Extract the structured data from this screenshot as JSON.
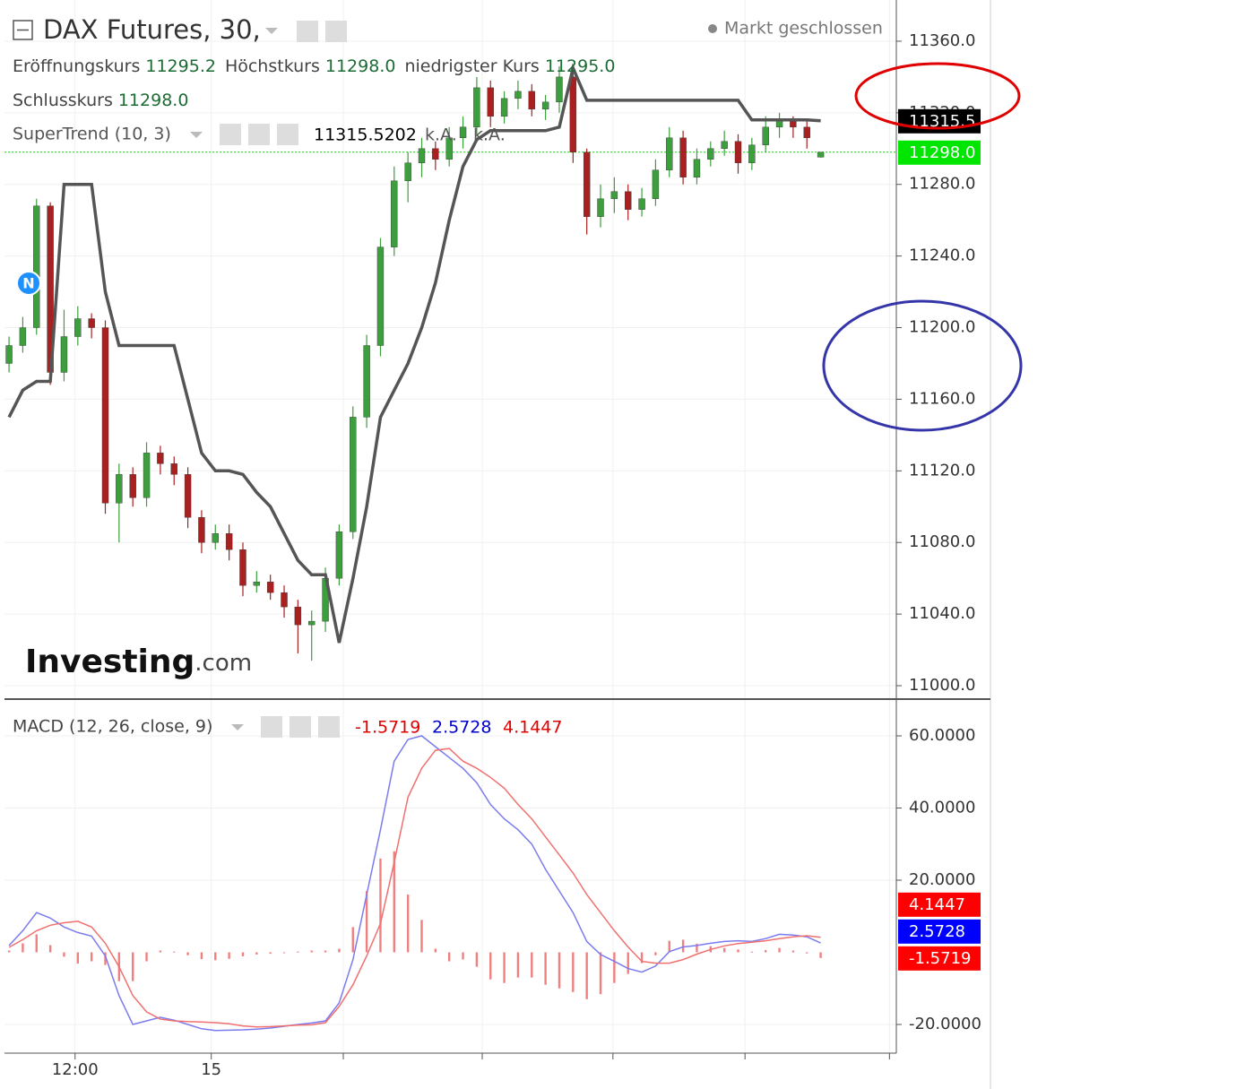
{
  "chart_data": [
    {
      "type": "candlestick",
      "title": "DAX Futures, 30,",
      "status": "Markt geschlossen",
      "ohlc_legend": [
        {
          "label": "Eröffnungskurs",
          "value": "11295.2"
        },
        {
          "label": "Höchstkurs",
          "value": "11298.0"
        },
        {
          "label": "niedrigster Kurs",
          "value": "11295.0"
        },
        {
          "label": "Schlusskurs",
          "value": "11298.0"
        }
      ],
      "indicator": {
        "name": "SuperTrend (10, 3)",
        "extras": [
          "k.A.",
          "k.A."
        ],
        "color": "#555555"
      },
      "marker": {
        "label": "N"
      },
      "watermark": {
        "brand": "Investing",
        "suffix": ".com"
      },
      "up_color": "#3c9e3c",
      "down_color": "#a82020",
      "xlim": [
        -0.33,
        64.5
      ],
      "open": [
        11180,
        11190,
        11200,
        11268,
        11175,
        11195,
        11205,
        11200,
        11102,
        11118,
        11105,
        11130,
        11124,
        11118,
        11094,
        11080,
        11085,
        11076,
        11056,
        11058,
        11052,
        11044,
        11034,
        11036,
        11060,
        11086,
        11150,
        11190,
        11245,
        11282,
        11292,
        11300,
        11294,
        11306,
        11312,
        11334,
        11318,
        11328,
        11332,
        11322,
        11326,
        11340,
        11298,
        11262,
        11272,
        11276,
        11266,
        11272,
        11288,
        11306,
        11284,
        11294,
        11300,
        11304,
        11292,
        11302,
        11312,
        11316,
        11312,
        11295.2
      ],
      "high": [
        11195,
        11206,
        11272,
        11270,
        11210,
        11212,
        11208,
        11204,
        11124,
        11122,
        11136,
        11134,
        11128,
        11122,
        11098,
        11090,
        11090,
        11080,
        11064,
        11062,
        11056,
        11048,
        11042,
        11066,
        11090,
        11156,
        11196,
        11250,
        11290,
        11298,
        11306,
        11304,
        11312,
        11318,
        11340,
        11338,
        11332,
        11338,
        11336,
        11330,
        11346,
        11344,
        11300,
        11280,
        11284,
        11280,
        11278,
        11294,
        11312,
        11310,
        11300,
        11304,
        11310,
        11308,
        11306,
        11318,
        11320,
        11318,
        11316,
        11298
      ],
      "low": [
        11175,
        11186,
        11196,
        11168,
        11170,
        11190,
        11194,
        11096,
        11080,
        11100,
        11100,
        11118,
        11112,
        11088,
        11074,
        11076,
        11070,
        11050,
        11052,
        11048,
        11038,
        11018,
        11014,
        11030,
        11056,
        11082,
        11144,
        11184,
        11240,
        11270,
        11284,
        11288,
        11290,
        11300,
        11308,
        11312,
        11314,
        11322,
        11318,
        11316,
        11320,
        11292,
        11252,
        11256,
        11264,
        11260,
        11262,
        11268,
        11284,
        11280,
        11280,
        11290,
        11296,
        11286,
        11288,
        11298,
        11306,
        11306,
        11300,
        11295
      ],
      "close": [
        11190,
        11200,
        11268,
        11175,
        11195,
        11205,
        11200,
        11102,
        11118,
        11105,
        11130,
        11124,
        11118,
        11094,
        11080,
        11085,
        11076,
        11056,
        11058,
        11052,
        11044,
        11034,
        11036,
        11060,
        11086,
        11150,
        11190,
        11245,
        11282,
        11292,
        11300,
        11294,
        11306,
        11312,
        11334,
        11318,
        11328,
        11332,
        11322,
        11326,
        11340,
        11298,
        11262,
        11272,
        11276,
        11266,
        11272,
        11288,
        11306,
        11284,
        11294,
        11300,
        11304,
        11292,
        11302,
        11312,
        11316,
        11312,
        11306,
        11298
      ],
      "supertrend": [
        11150,
        11165,
        11170,
        11170,
        11280,
        11280,
        11280,
        11220,
        11190,
        11190,
        11190,
        11190,
        11190,
        11160,
        11130,
        11120,
        11120,
        11118,
        11108,
        11100,
        11085,
        11070,
        11062,
        11062,
        11024,
        11060,
        11100,
        11150,
        11165,
        11180,
        11200,
        11225,
        11260,
        11290,
        11305,
        11310,
        11310,
        11310,
        11310,
        11310,
        11312,
        11345,
        11327,
        11327,
        11327,
        11327,
        11327,
        11327,
        11327,
        11327,
        11327,
        11327,
        11327,
        11327,
        11316,
        11316,
        11316,
        11316,
        11316,
        11315.5202
      ],
      "ylim": [
        10992.5,
        11383
      ],
      "yticks": [
        {
          "value": 11000,
          "label": "11000.0"
        },
        {
          "value": 11040,
          "label": "11040.0"
        },
        {
          "value": 11080,
          "label": "11080.0"
        },
        {
          "value": 11120,
          "label": "11120.0"
        },
        {
          "value": 11160,
          "label": "11160.0"
        },
        {
          "value": 11200,
          "label": "11200.0"
        },
        {
          "value": 11240,
          "label": "11240.0"
        },
        {
          "value": 11280,
          "label": "11280.0"
        },
        {
          "value": 11320,
          "label": "11320.0"
        },
        {
          "value": 11360,
          "label": "11360.0"
        }
      ],
      "last_price_color": "#00e600",
      "price_labels": [
        {
          "value": 11315.5202,
          "label": "11315.5",
          "color": "#000000"
        },
        {
          "value": 11298,
          "label": "11298.0",
          "color": "#00e600"
        }
      ],
      "grid": true
    },
    {
      "type": "macd",
      "title": "MACD (12, 26, close, 9)",
      "xlim": [
        -0.33,
        64.5
      ],
      "xticks": [
        {
          "value": 4.8,
          "label": "12:00"
        },
        {
          "value": 14.7,
          "label": "15"
        },
        {
          "value": 24.3,
          "label": null
        },
        {
          "value": 34.4,
          "label": null
        },
        {
          "value": 43.9,
          "label": null
        },
        {
          "value": 53.5,
          "label": null
        },
        {
          "value": 64,
          "label": null
        }
      ],
      "series": [
        {
          "style": "histogram",
          "color": "#f08080",
          "values": [
            0.5,
            2.5,
            5,
            2,
            -1.2,
            -3.1,
            -2.5,
            -3.5,
            -8,
            -8,
            -2.5,
            0.5,
            0.2,
            -0.8,
            -1.9,
            -2.2,
            -1.8,
            -1.1,
            -0.6,
            -0.4,
            -0.1,
            0.2,
            0.5,
            0.5,
            1,
            7,
            17,
            26,
            28,
            16,
            9,
            1,
            -2.5,
            -2,
            -4,
            -7.5,
            -8.5,
            -7,
            -7,
            -9,
            -10,
            -11,
            -13,
            -11.6,
            -8.5,
            -6,
            -3,
            -0.8,
            3.2,
            3.5,
            2.4,
            1.7,
            1.2,
            0.8,
            0.2,
            0.6,
            1.2,
            0.5,
            -0.3,
            -1.5719
          ]
        },
        {
          "style": "line",
          "color": "#7b7bf0",
          "values": [
            1.9,
            6,
            11,
            9.5,
            7,
            5.5,
            4.5,
            -1,
            -12,
            -20,
            -19,
            -18,
            -18.8,
            -20,
            -21.2,
            -21.7,
            -21.6,
            -21.5,
            -21.3,
            -21,
            -20.5,
            -20,
            -19.6,
            -19,
            -14,
            -2,
            16,
            34,
            53,
            59,
            60,
            57,
            54,
            51,
            47,
            41,
            37,
            34,
            30,
            23,
            17,
            11,
            3,
            -0.6,
            -2.5,
            -4.5,
            -5.5,
            -3.8,
            0.2,
            1.5,
            1.9,
            2.5,
            3,
            3.2,
            3,
            3.8,
            5,
            4.8,
            4.3,
            2.5728
          ]
        },
        {
          "style": "line",
          "color": "#f07070",
          "values": [
            1.4,
            3.5,
            6,
            7.5,
            8.2,
            8.6,
            7,
            2.5,
            -4,
            -12,
            -16.5,
            -18.5,
            -19,
            -19.2,
            -19.3,
            -19.5,
            -19.8,
            -20.4,
            -20.7,
            -20.6,
            -20.4,
            -20.2,
            -20.1,
            -19.5,
            -15,
            -9,
            -1,
            8,
            25,
            43,
            51,
            56,
            56.5,
            53,
            51,
            48.5,
            45.5,
            41,
            37,
            32,
            27,
            22,
            16,
            11,
            6,
            1.5,
            -2.5,
            -3,
            -3,
            -2,
            -0.5,
            0.8,
            1.8,
            2.4,
            2.8,
            3.2,
            3.8,
            4.3,
            4.6,
            4.1447
          ]
        }
      ],
      "ylim": [
        -27.95,
        69.69
      ],
      "yticks": [
        {
          "value": -20,
          "label": "-20.0000"
        },
        {
          "value": 20,
          "label": "20.0000"
        },
        {
          "value": 40,
          "label": "40.0000"
        },
        {
          "value": 60,
          "label": "60.0000"
        }
      ],
      "axis_labels": [
        {
          "value": 4.1447,
          "label": "4.1447",
          "color": "#ff0000"
        },
        {
          "value": 2.5728,
          "label": "2.5728",
          "color": "#0000ff"
        },
        {
          "value": -1.5719,
          "label": "-1.5719",
          "color": "#ff0000"
        }
      ],
      "grid": true
    }
  ]
}
